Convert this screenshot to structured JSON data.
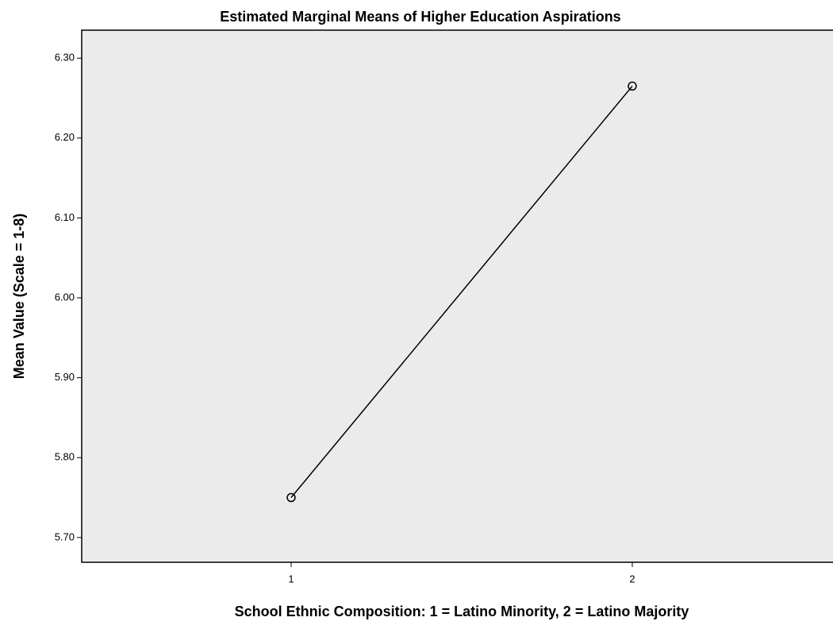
{
  "chart_data": {
    "type": "line",
    "title": "Estimated Marginal Means of Higher Education Aspirations",
    "x_label": "School Ethnic Composition: 1 = Latino Minority, 2 = Latino Majority",
    "y_label": "Mean Value (Scale = 1-8)",
    "categories": [
      "1",
      "2"
    ],
    "values": [
      5.75,
      6.265
    ],
    "color": "#000000",
    "ylim": [
      5.669,
      6.335
    ],
    "yticks": [
      {
        "value": 5.7,
        "label": "5.70"
      },
      {
        "value": 5.8,
        "label": "5.80"
      },
      {
        "value": 5.9,
        "label": "5.90"
      },
      {
        "value": 6.0,
        "label": "6.00"
      },
      {
        "value": 6.1,
        "label": "6.10"
      },
      {
        "value": 6.2,
        "label": "6.20"
      },
      {
        "value": 6.3,
        "label": "6.30"
      }
    ],
    "grid": false
  }
}
